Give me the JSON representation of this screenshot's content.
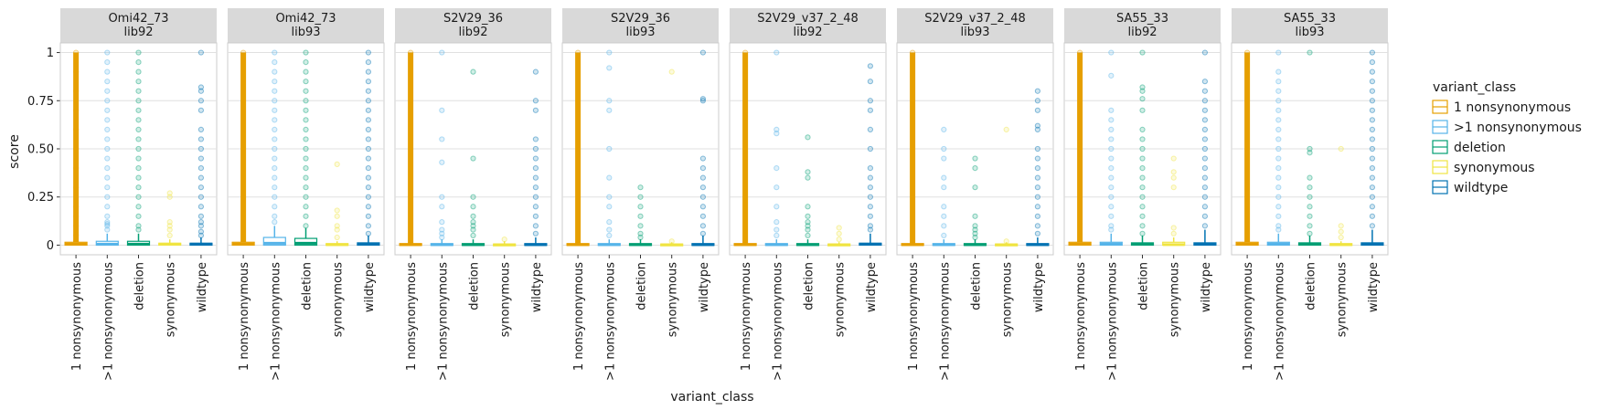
{
  "chart_data": {
    "type": "box",
    "xlabel": "variant_class",
    "ylabel": "score",
    "ylim": [
      -0.05,
      1.05
    ],
    "y_ticks": [
      0,
      0.25,
      0.5,
      0.75,
      1
    ],
    "y_tick_labels": [
      "0",
      "0.25",
      "0.50",
      "0.75",
      "1"
    ],
    "grid": true,
    "legend_position": "right",
    "legend_title": "variant_class",
    "categories": [
      "1 nonsynonymous",
      ">1 nonsynonymous",
      "deletion",
      "synonymous",
      "wildtype"
    ],
    "colors": {
      "1 nonsynonymous": "#E69F00",
      ">1 nonsynonymous": "#56B4E9",
      "deletion": "#009E73",
      "synonymous": "#F0E442",
      "wildtype": "#0072B2"
    },
    "panels": [
      {
        "strip": [
          "Omi42_73",
          "lib92"
        ],
        "boxes": {
          "1 nonsynonymous": {
            "q1": 0.0,
            "median": 0.005,
            "q3": 0.015,
            "whisker_high": 1.0,
            "outliers": [
              0.02,
              0.05,
              0.1,
              0.15,
              0.2,
              0.3,
              0.4,
              0.5,
              0.6,
              0.7,
              0.8,
              0.9,
              1.0
            ]
          },
          ">1 nonsynonymous": {
            "q1": 0.0,
            "median": 0.005,
            "q3": 0.02,
            "whisker_high": 0.06,
            "outliers": [
              0.08,
              0.1,
              0.11,
              0.12,
              0.15,
              0.2,
              0.25,
              0.3,
              0.35,
              0.4,
              0.45,
              0.5,
              0.55,
              0.6,
              0.65,
              0.7,
              0.75,
              0.8,
              0.85,
              0.9,
              0.95,
              1.0
            ]
          },
          "deletion": {
            "q1": 0.0,
            "median": 0.005,
            "q3": 0.02,
            "whisker_high": 0.06,
            "outliers": [
              0.08,
              0.1,
              0.15,
              0.2,
              0.25,
              0.3,
              0.35,
              0.4,
              0.45,
              0.5,
              0.55,
              0.6,
              0.65,
              0.7,
              0.75,
              0.8,
              0.85,
              0.9,
              0.95,
              1.0
            ]
          },
          "synonymous": {
            "q1": 0.0,
            "median": 0.005,
            "q3": 0.01,
            "whisker_high": 0.03,
            "outliers": [
              0.05,
              0.08,
              0.1,
              0.12,
              0.25,
              0.27
            ]
          },
          "wildtype": {
            "q1": 0.0,
            "median": 0.005,
            "q3": 0.01,
            "whisker_high": 0.04,
            "outliers": [
              0.05,
              0.07,
              0.1,
              0.12,
              0.15,
              0.2,
              0.25,
              0.3,
              0.35,
              0.4,
              0.45,
              0.5,
              0.55,
              0.6,
              0.7,
              0.75,
              0.8,
              0.82,
              1.0
            ]
          }
        }
      },
      {
        "strip": [
          "Omi42_73",
          "lib93"
        ],
        "boxes": {
          "1 nonsynonymous": {
            "q1": 0.0,
            "median": 0.005,
            "q3": 0.015,
            "whisker_high": 1.0,
            "outliers": [
              1.0
            ]
          },
          ">1 nonsynonymous": {
            "q1": 0.0,
            "median": 0.01,
            "q3": 0.04,
            "whisker_high": 0.1,
            "outliers": [
              0.12,
              0.15,
              0.2,
              0.25,
              0.3,
              0.35,
              0.4,
              0.45,
              0.5,
              0.55,
              0.6,
              0.65,
              0.7,
              0.75,
              0.8,
              0.85,
              0.9,
              0.95,
              1.0
            ]
          },
          "deletion": {
            "q1": 0.0,
            "median": 0.01,
            "q3": 0.035,
            "whisker_high": 0.09,
            "outliers": [
              0.1,
              0.15,
              0.2,
              0.25,
              0.3,
              0.35,
              0.4,
              0.45,
              0.5,
              0.55,
              0.6,
              0.65,
              0.7,
              0.75,
              0.8,
              0.85,
              0.9,
              0.95,
              1.0
            ]
          },
          "synonymous": {
            "q1": 0.0,
            "median": 0.003,
            "q3": 0.008,
            "whisker_high": 0.02,
            "outliers": [
              0.04,
              0.08,
              0.1,
              0.15,
              0.18,
              0.42
            ]
          },
          "wildtype": {
            "q1": 0.0,
            "median": 0.005,
            "q3": 0.012,
            "whisker_high": 0.05,
            "outliers": [
              0.06,
              0.1,
              0.15,
              0.2,
              0.25,
              0.3,
              0.35,
              0.4,
              0.45,
              0.5,
              0.55,
              0.6,
              0.65,
              0.7,
              0.75,
              0.8,
              0.85,
              0.9,
              0.95,
              1.0
            ]
          }
        }
      },
      {
        "strip": [
          "S2V29_36",
          "lib92"
        ],
        "boxes": {
          "1 nonsynonymous": {
            "q1": 0.0,
            "median": 0.003,
            "q3": 0.008,
            "whisker_high": 1.0,
            "outliers": [
              1.0
            ]
          },
          ">1 nonsynonymous": {
            "q1": 0.0,
            "median": 0.003,
            "q3": 0.008,
            "whisker_high": 0.03,
            "outliers": [
              0.04,
              0.06,
              0.08,
              0.12,
              0.2,
              0.25,
              0.43,
              0.55,
              0.7,
              1.0
            ]
          },
          "deletion": {
            "q1": 0.0,
            "median": 0.003,
            "q3": 0.008,
            "whisker_high": 0.03,
            "outliers": [
              0.05,
              0.08,
              0.1,
              0.12,
              0.15,
              0.2,
              0.25,
              0.45,
              0.9
            ]
          },
          "synonymous": {
            "q1": 0.0,
            "median": 0.002,
            "q3": 0.006,
            "whisker_high": 0.02,
            "outliers": [
              0.03
            ]
          },
          "wildtype": {
            "q1": 0.0,
            "median": 0.003,
            "q3": 0.008,
            "whisker_high": 0.04,
            "outliers": [
              0.06,
              0.1,
              0.15,
              0.2,
              0.25,
              0.3,
              0.35,
              0.4,
              0.45,
              0.5,
              0.55,
              0.7,
              0.75,
              0.9
            ]
          }
        }
      },
      {
        "strip": [
          "S2V29_36",
          "lib93"
        ],
        "boxes": {
          "1 nonsynonymous": {
            "q1": 0.0,
            "median": 0.003,
            "q3": 0.008,
            "whisker_high": 1.0,
            "outliers": [
              1.0
            ]
          },
          ">1 nonsynonymous": {
            "q1": 0.0,
            "median": 0.003,
            "q3": 0.008,
            "whisker_high": 0.03,
            "outliers": [
              0.05,
              0.08,
              0.12,
              0.2,
              0.25,
              0.35,
              0.5,
              0.7,
              0.75,
              0.92,
              1.0
            ]
          },
          "deletion": {
            "q1": 0.0,
            "median": 0.003,
            "q3": 0.008,
            "whisker_high": 0.03,
            "outliers": [
              0.04,
              0.06,
              0.1,
              0.15,
              0.2,
              0.25,
              0.3
            ]
          },
          "synonymous": {
            "q1": 0.0,
            "median": 0.002,
            "q3": 0.006,
            "whisker_high": 0.015,
            "outliers": [
              0.02,
              0.9
            ]
          },
          "wildtype": {
            "q1": 0.0,
            "median": 0.003,
            "q3": 0.008,
            "whisker_high": 0.05,
            "outliers": [
              0.06,
              0.1,
              0.15,
              0.2,
              0.25,
              0.3,
              0.35,
              0.4,
              0.45,
              0.75,
              0.76,
              1.0
            ]
          }
        }
      },
      {
        "strip": [
          "S2V29_v37_2_48",
          "lib92"
        ],
        "boxes": {
          "1 nonsynonymous": {
            "q1": 0.0,
            "median": 0.003,
            "q3": 0.008,
            "whisker_high": 1.0,
            "outliers": [
              1.0
            ]
          },
          ">1 nonsynonymous": {
            "q1": 0.0,
            "median": 0.003,
            "q3": 0.008,
            "whisker_high": 0.03,
            "outliers": [
              0.05,
              0.08,
              0.12,
              0.2,
              0.3,
              0.4,
              0.58,
              0.6,
              1.0
            ]
          },
          "deletion": {
            "q1": 0.0,
            "median": 0.003,
            "q3": 0.008,
            "whisker_high": 0.03,
            "outliers": [
              0.05,
              0.08,
              0.1,
              0.12,
              0.15,
              0.2,
              0.35,
              0.38,
              0.56
            ]
          },
          "synonymous": {
            "q1": 0.0,
            "median": 0.002,
            "q3": 0.006,
            "whisker_high": 0.015,
            "outliers": [
              0.03,
              0.06,
              0.09
            ]
          },
          "wildtype": {
            "q1": 0.0,
            "median": 0.005,
            "q3": 0.01,
            "whisker_high": 0.06,
            "outliers": [
              0.08,
              0.1,
              0.15,
              0.2,
              0.25,
              0.3,
              0.35,
              0.4,
              0.5,
              0.6,
              0.7,
              0.75,
              0.85,
              0.93
            ]
          }
        }
      },
      {
        "strip": [
          "S2V29_v37_2_48",
          "lib93"
        ],
        "boxes": {
          "1 nonsynonymous": {
            "q1": 0.0,
            "median": 0.003,
            "q3": 0.008,
            "whisker_high": 1.0,
            "outliers": [
              1.0
            ]
          },
          ">1 nonsynonymous": {
            "q1": 0.0,
            "median": 0.003,
            "q3": 0.008,
            "whisker_high": 0.03,
            "outliers": [
              0.05,
              0.1,
              0.15,
              0.2,
              0.3,
              0.35,
              0.45,
              0.5,
              0.6
            ]
          },
          "deletion": {
            "q1": 0.0,
            "median": 0.003,
            "q3": 0.008,
            "whisker_high": 0.03,
            "outliers": [
              0.04,
              0.06,
              0.08,
              0.1,
              0.15,
              0.3,
              0.4,
              0.45
            ]
          },
          "synonymous": {
            "q1": 0.0,
            "median": 0.002,
            "q3": 0.006,
            "whisker_high": 0.015,
            "outliers": [
              0.02,
              0.6
            ]
          },
          "wildtype": {
            "q1": 0.0,
            "median": 0.003,
            "q3": 0.008,
            "whisker_high": 0.04,
            "outliers": [
              0.06,
              0.1,
              0.15,
              0.2,
              0.25,
              0.3,
              0.35,
              0.4,
              0.45,
              0.5,
              0.6,
              0.62,
              0.7,
              0.75,
              0.8
            ]
          }
        }
      },
      {
        "strip": [
          "SA55_33",
          "lib92"
        ],
        "boxes": {
          "1 nonsynonymous": {
            "q1": 0.0,
            "median": 0.005,
            "q3": 0.015,
            "whisker_high": 1.0,
            "outliers": [
              1.0
            ]
          },
          ">1 nonsynonymous": {
            "q1": 0.0,
            "median": 0.005,
            "q3": 0.015,
            "whisker_high": 0.06,
            "outliers": [
              0.08,
              0.1,
              0.15,
              0.2,
              0.25,
              0.3,
              0.35,
              0.4,
              0.45,
              0.5,
              0.55,
              0.6,
              0.65,
              0.7,
              0.88,
              1.0
            ]
          },
          "deletion": {
            "q1": 0.0,
            "median": 0.005,
            "q3": 0.012,
            "whisker_high": 0.05,
            "outliers": [
              0.06,
              0.1,
              0.15,
              0.2,
              0.25,
              0.3,
              0.35,
              0.4,
              0.45,
              0.5,
              0.55,
              0.6,
              0.7,
              0.76,
              0.8,
              0.82,
              1.0
            ]
          },
          "synonymous": {
            "q1": 0.0,
            "median": 0.003,
            "q3": 0.015,
            "whisker_high": 0.04,
            "outliers": [
              0.06,
              0.09,
              0.3,
              0.35,
              0.38,
              0.45
            ]
          },
          "wildtype": {
            "q1": 0.0,
            "median": 0.005,
            "q3": 0.012,
            "whisker_high": 0.08,
            "outliers": [
              0.1,
              0.15,
              0.2,
              0.25,
              0.3,
              0.35,
              0.4,
              0.45,
              0.5,
              0.55,
              0.6,
              0.65,
              0.7,
              0.75,
              0.8,
              0.85,
              1.0
            ]
          }
        }
      },
      {
        "strip": [
          "SA55_33",
          "lib93"
        ],
        "boxes": {
          "1 nonsynonymous": {
            "q1": 0.0,
            "median": 0.005,
            "q3": 0.015,
            "whisker_high": 1.0,
            "outliers": [
              1.0
            ]
          },
          ">1 nonsynonymous": {
            "q1": 0.0,
            "median": 0.005,
            "q3": 0.015,
            "whisker_high": 0.06,
            "outliers": [
              0.08,
              0.1,
              0.15,
              0.2,
              0.25,
              0.3,
              0.35,
              0.4,
              0.45,
              0.5,
              0.55,
              0.6,
              0.65,
              0.7,
              0.75,
              0.8,
              0.85,
              0.9,
              1.0
            ]
          },
          "deletion": {
            "q1": 0.0,
            "median": 0.005,
            "q3": 0.012,
            "whisker_high": 0.05,
            "outliers": [
              0.06,
              0.1,
              0.15,
              0.2,
              0.25,
              0.3,
              0.35,
              0.48,
              0.5,
              1.0
            ]
          },
          "synonymous": {
            "q1": 0.0,
            "median": 0.003,
            "q3": 0.008,
            "whisker_high": 0.02,
            "outliers": [
              0.04,
              0.07,
              0.1,
              0.5
            ]
          },
          "wildtype": {
            "q1": 0.0,
            "median": 0.005,
            "q3": 0.012,
            "whisker_high": 0.08,
            "outliers": [
              0.1,
              0.15,
              0.2,
              0.25,
              0.3,
              0.35,
              0.4,
              0.45,
              0.5,
              0.55,
              0.6,
              0.65,
              0.7,
              0.75,
              0.8,
              0.85,
              0.9,
              0.95,
              1.0
            ]
          }
        }
      }
    ]
  }
}
